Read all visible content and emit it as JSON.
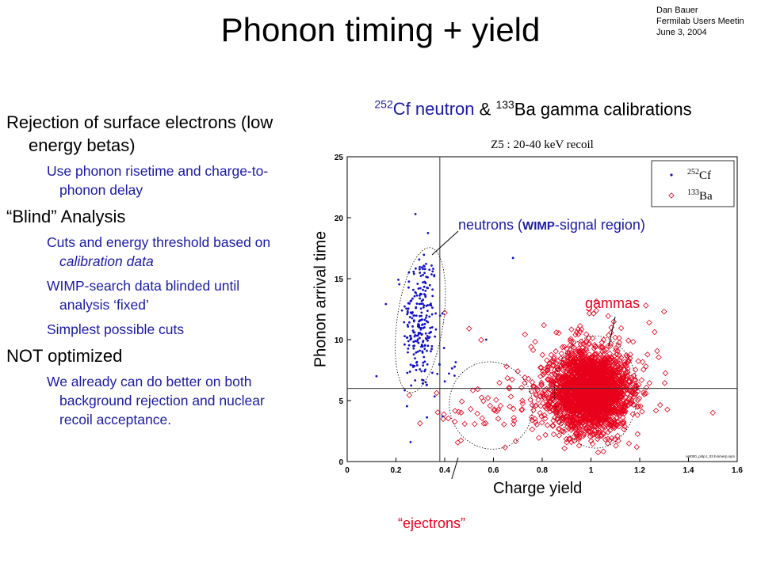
{
  "slide": {
    "author_lines": [
      "Dan Bauer",
      "Fermilab Users Meetin",
      "June 3, 2004"
    ],
    "title": "Phonon timing + yield",
    "bullets": [
      {
        "level": 1,
        "text": "Rejection of surface electrons (low energy betas)"
      },
      {
        "level": 2,
        "text": "Use phonon risetime and charge-to-phonon delay"
      },
      {
        "level": 1,
        "text": "“Blind” Analysis"
      },
      {
        "level": 2,
        "text": "Cuts and energy threshold based on ",
        "italic": "calibration data"
      },
      {
        "level": 2,
        "text": "WIMP-search data blinded until analysis ‘fixed’"
      },
      {
        "level": 2,
        "text": "Simplest possible cuts"
      },
      {
        "level": 1,
        "text": "NOT optimized"
      },
      {
        "level": 2,
        "text": "We already can do better on both background rejection and nuclear recoil acceptance."
      }
    ],
    "subtitle": {
      "cf_mass": "252",
      "cf_symbol": "Cf",
      "neutron_word": "neutron",
      "amp": "&",
      "ba_mass": "133",
      "ba_symbol": "Ba",
      "rest": "gamma  calibrations"
    },
    "annotations": {
      "neutrons": "neutrons (",
      "neutrons_wimp": "WIMP",
      "neutrons_rest": "-signal region)",
      "gammas": "gammas",
      "ejectrons": "“ejectrons”"
    },
    "xlabel": "Charge yield",
    "ylabel": "Phonon arrival time"
  },
  "chart_data": {
    "type": "scatter",
    "title": "Z5 : 20-40 keV recoil",
    "xlim": [
      0,
      1.6
    ],
    "ylim": [
      0,
      25
    ],
    "xticks": [
      0,
      0.2,
      0.4,
      0.6,
      0.8,
      1,
      1.2,
      1.4,
      1.6
    ],
    "yticks": [
      0,
      5,
      10,
      15,
      20,
      25
    ],
    "cut_lines": {
      "x": 0.38,
      "y": 6
    },
    "series": [
      {
        "name": "252Cf",
        "name_mass": "252",
        "name_symbol": "Cf",
        "marker": "dot",
        "color": "#1010c8",
        "clusters": [
          {
            "cx": 0.3,
            "cy": 11.5,
            "sx": 0.035,
            "sy": 3.0,
            "n": 230
          },
          {
            "cx": 0.36,
            "cy": 7.5,
            "sx": 0.05,
            "sy": 2.0,
            "n": 20
          }
        ],
        "extra_points": [
          [
            0.28,
            20.3
          ],
          [
            0.68,
            16.7
          ],
          [
            0.57,
            10
          ],
          [
            0.12,
            7
          ],
          [
            0.26,
            1.6
          ]
        ]
      },
      {
        "name": "133Ba",
        "name_mass": "133",
        "name_symbol": "Ba",
        "marker": "diamond",
        "color": "#e8001c",
        "clusters": [
          {
            "cx": 1.0,
            "cy": 5.8,
            "sx": 0.075,
            "sy": 1.5,
            "n": 2400
          },
          {
            "cx": 0.97,
            "cy": 6.0,
            "sx": 0.14,
            "sy": 2.4,
            "n": 350
          },
          {
            "cx": 0.6,
            "cy": 4.3,
            "sx": 0.13,
            "sy": 1.2,
            "n": 60
          }
        ],
        "extra_points": [
          [
            0.0,
            3.8
          ],
          [
            0.5,
            10.9
          ],
          [
            0.4,
            12.2
          ],
          [
            1.3,
            12.3
          ],
          [
            1.5,
            4
          ]
        ]
      }
    ],
    "regions": [
      {
        "label": "neutrons",
        "cx": 0.3,
        "cy": 11.6,
        "rx": 0.095,
        "ry": 6.0,
        "rot": 8
      },
      {
        "label": "ejectrons",
        "cx": 0.59,
        "cy": 4.6,
        "rx": 0.17,
        "ry": 3.6,
        "rot": -18
      },
      {
        "label": "gammas",
        "cx": 1.02,
        "cy": 5.7,
        "rx": 0.17,
        "ry": 4.6,
        "rot": 0
      }
    ],
    "footer": "set000_pl4p.t_02∙b-timerp.sym"
  }
}
